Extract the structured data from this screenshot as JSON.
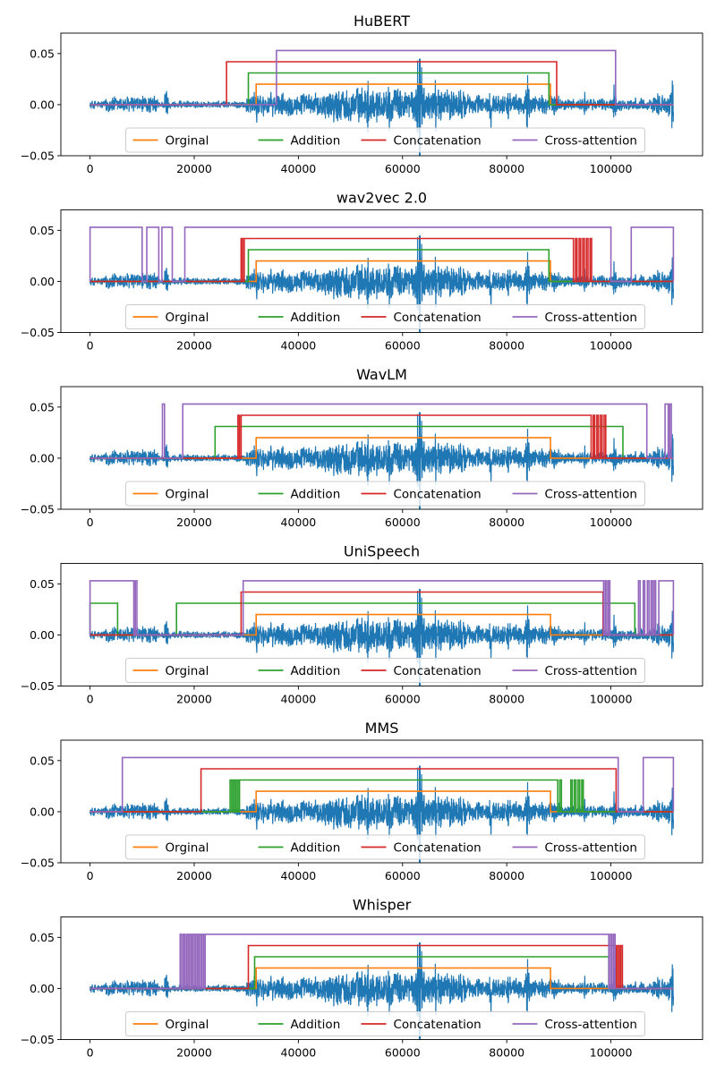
{
  "figure": {
    "legend_order": [
      "Orginal",
      "Addition",
      "Concatenation",
      "Cross-attention"
    ],
    "colors": {
      "waveform": "#1f77b4",
      "Orginal": "#ff7f0e",
      "Addition": "#2ca02c",
      "Concatenation": "#d62728",
      "Cross-attention": "#9467bd"
    }
  },
  "chart_data": [
    {
      "type": "line",
      "title": "HuBERT",
      "xlim": [
        -5600,
        117600
      ],
      "ylim": [
        -0.05,
        0.07
      ],
      "xticks": [
        0,
        20000,
        40000,
        60000,
        80000,
        100000
      ],
      "xtick_labels": [
        "0",
        "20000",
        "40000",
        "60000",
        "80000",
        "100000"
      ],
      "yticks": [
        -0.05,
        0.0,
        0.05
      ],
      "ytick_labels": [
        "−0.05",
        "0.00",
        "0.05"
      ],
      "legend": [
        "Orginal",
        "Addition",
        "Concatenation",
        "Cross-attention"
      ],
      "legend_position": "lower center",
      "series": [
        {
          "name": "Orginal",
          "high": 0.02,
          "segments": [
            [
              31900,
              88400
            ]
          ]
        },
        {
          "name": "Addition",
          "high": 0.031,
          "segments": [
            [
              30400,
              88100
            ]
          ]
        },
        {
          "name": "Concatenation",
          "high": 0.042,
          "segments": [
            [
              26200,
              89600
            ]
          ]
        },
        {
          "name": "Cross-attention",
          "high": 0.053,
          "segments": [
            [
              35800,
              100900
            ]
          ]
        }
      ]
    },
    {
      "type": "line",
      "title": "wav2vec 2.0",
      "xlim": [
        -5600,
        117600
      ],
      "ylim": [
        -0.05,
        0.07
      ],
      "xticks": [
        0,
        20000,
        40000,
        60000,
        80000,
        100000
      ],
      "xtick_labels": [
        "0",
        "20000",
        "40000",
        "60000",
        "80000",
        "100000"
      ],
      "yticks": [
        -0.05,
        0.0,
        0.05
      ],
      "ytick_labels": [
        "−0.05",
        "0.00",
        "0.05"
      ],
      "legend": [
        "Orginal",
        "Addition",
        "Concatenation",
        "Cross-attention"
      ],
      "legend_position": "lower center",
      "series": [
        {
          "name": "Orginal",
          "high": 0.02,
          "segments": [
            [
              31900,
              88400
            ]
          ]
        },
        {
          "name": "Addition",
          "high": 0.031,
          "segments": [
            [
              30400,
              88100
            ]
          ]
        },
        {
          "name": "Concatenation",
          "high": 0.042,
          "segments": [
            [
              29000,
              29300
            ],
            [
              29600,
              92800
            ],
            [
              93200,
              93500
            ],
            [
              93900,
              94200
            ],
            [
              94600,
              94900
            ],
            [
              95300,
              95600
            ],
            [
              96000,
              96300
            ]
          ]
        },
        {
          "name": "Cross-attention",
          "high": 0.053,
          "segments": [
            [
              0,
              10000
            ],
            [
              10900,
              13200
            ],
            [
              13800,
              15800
            ],
            [
              18200,
              100000
            ],
            [
              103900,
              112000
            ]
          ]
        }
      ]
    },
    {
      "type": "line",
      "title": "WavLM",
      "xlim": [
        -5600,
        117600
      ],
      "ylim": [
        -0.05,
        0.07
      ],
      "xticks": [
        0,
        20000,
        40000,
        60000,
        80000,
        100000
      ],
      "xtick_labels": [
        "0",
        "20000",
        "40000",
        "60000",
        "80000",
        "100000"
      ],
      "yticks": [
        -0.05,
        0.0,
        0.05
      ],
      "ytick_labels": [
        "−0.05",
        "0.00",
        "0.05"
      ],
      "legend": [
        "Orginal",
        "Addition",
        "Concatenation",
        "Cross-attention"
      ],
      "legend_position": "lower center",
      "series": [
        {
          "name": "Orginal",
          "high": 0.02,
          "segments": [
            [
              31900,
              88400
            ]
          ]
        },
        {
          "name": "Addition",
          "high": 0.031,
          "segments": [
            [
              24000,
              102300
            ]
          ]
        },
        {
          "name": "Concatenation",
          "high": 0.042,
          "segments": [
            [
              28400,
              28700
            ],
            [
              29000,
              96200
            ],
            [
              96600,
              96900
            ],
            [
              97300,
              97600
            ],
            [
              98000,
              98300
            ],
            [
              98700,
              99000
            ]
          ]
        },
        {
          "name": "Cross-attention",
          "high": 0.053,
          "segments": [
            [
              13900,
              14300
            ],
            [
              17800,
              106900
            ],
            [
              110400,
              111000
            ],
            [
              111300,
              111600
            ]
          ]
        }
      ]
    },
    {
      "type": "line",
      "title": "UniSpeech",
      "xlim": [
        -5600,
        117600
      ],
      "ylim": [
        -0.05,
        0.07
      ],
      "xticks": [
        0,
        20000,
        40000,
        60000,
        80000,
        100000
      ],
      "xtick_labels": [
        "0",
        "20000",
        "40000",
        "60000",
        "80000",
        "100000"
      ],
      "yticks": [
        -0.05,
        0.0,
        0.05
      ],
      "ytick_labels": [
        "−0.05",
        "0.00",
        "0.05"
      ],
      "legend": [
        "Orginal",
        "Addition",
        "Concatenation",
        "Cross-attention"
      ],
      "legend_position": "lower center",
      "series": [
        {
          "name": "Orginal",
          "high": 0.02,
          "segments": [
            [
              31900,
              88400
            ]
          ]
        },
        {
          "name": "Addition",
          "high": 0.031,
          "segments": [
            [
              0,
              5300
            ],
            [
              16600,
              104600
            ]
          ]
        },
        {
          "name": "Concatenation",
          "high": 0.042,
          "segments": [
            [
              29000,
              98500
            ]
          ]
        },
        {
          "name": "Cross-attention",
          "high": 0.053,
          "segments": [
            [
              0,
              8400
            ],
            [
              8700,
              9000
            ],
            [
              29400,
              98600
            ],
            [
              98900,
              99200
            ],
            [
              99500,
              99800
            ],
            [
              105300,
              105600
            ],
            [
              106200,
              106500
            ],
            [
              107000,
              107300
            ],
            [
              107700,
              108000
            ],
            [
              108300,
              108600
            ],
            [
              109200,
              112000
            ]
          ]
        }
      ]
    },
    {
      "type": "line",
      "title": "MMS",
      "xlim": [
        -5600,
        117600
      ],
      "ylim": [
        -0.05,
        0.07
      ],
      "xticks": [
        0,
        20000,
        40000,
        60000,
        80000,
        100000
      ],
      "xtick_labels": [
        "0",
        "20000",
        "40000",
        "60000",
        "80000",
        "100000"
      ],
      "yticks": [
        -0.05,
        0.0,
        0.05
      ],
      "ytick_labels": [
        "−0.05",
        "0.00",
        "0.05"
      ],
      "legend": [
        "Orginal",
        "Addition",
        "Concatenation",
        "Cross-attention"
      ],
      "legend_position": "lower center",
      "series": [
        {
          "name": "Orginal",
          "high": 0.02,
          "segments": [
            [
              31900,
              88400
            ]
          ]
        },
        {
          "name": "Addition",
          "high": 0.031,
          "segments": [
            [
              26900,
              27200
            ],
            [
              27500,
              27800
            ],
            [
              28100,
              28400
            ],
            [
              28700,
              89800
            ],
            [
              90200,
              90500
            ],
            [
              92300,
              92600
            ],
            [
              93000,
              93300
            ],
            [
              93700,
              94000
            ],
            [
              94400,
              94700
            ]
          ]
        },
        {
          "name": "Concatenation",
          "high": 0.042,
          "segments": [
            [
              21300,
              101000
            ]
          ]
        },
        {
          "name": "Cross-attention",
          "high": 0.053,
          "segments": [
            [
              6200,
              101400
            ],
            [
              106200,
              112000
            ]
          ]
        }
      ]
    },
    {
      "type": "line",
      "title": "Whisper",
      "xlim": [
        -5600,
        117600
      ],
      "ylim": [
        -0.05,
        0.07
      ],
      "xticks": [
        0,
        20000,
        40000,
        60000,
        80000,
        100000
      ],
      "xtick_labels": [
        "0",
        "20000",
        "40000",
        "60000",
        "80000",
        "100000"
      ],
      "yticks": [
        -0.05,
        0.0,
        0.05
      ],
      "ytick_labels": [
        "−0.05",
        "0.00",
        "0.05"
      ],
      "legend": [
        "Orginal",
        "Addition",
        "Concatenation",
        "Cross-attention"
      ],
      "legend_position": "lower center",
      "series": [
        {
          "name": "Orginal",
          "high": 0.02,
          "segments": [
            [
              31900,
              88400
            ]
          ]
        },
        {
          "name": "Addition",
          "high": 0.031,
          "segments": [
            [
              31600,
              99600
            ]
          ]
        },
        {
          "name": "Concatenation",
          "high": 0.042,
          "segments": [
            [
              30400,
              101000
            ],
            [
              101300,
              101600
            ],
            [
              101900,
              102200
            ]
          ]
        },
        {
          "name": "Cross-attention",
          "high": 0.053,
          "segments": [
            [
              17300,
              17600
            ],
            [
              17900,
              18200
            ],
            [
              18500,
              18800
            ],
            [
              19100,
              19400
            ],
            [
              19700,
              20000
            ],
            [
              20300,
              20600
            ],
            [
              20900,
              21200
            ],
            [
              21500,
              21800
            ],
            [
              22100,
              99600
            ],
            [
              99900,
              100200
            ],
            [
              100500,
              100800
            ]
          ]
        }
      ]
    }
  ]
}
